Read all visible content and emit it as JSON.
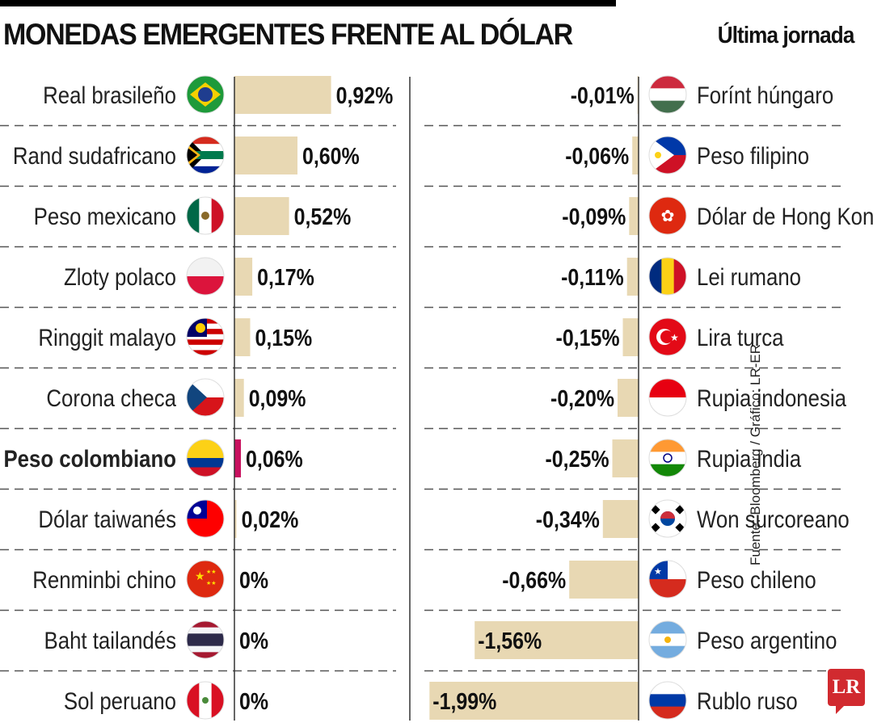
{
  "title": "MONEDAS EMERGENTES FRENTE AL DÓLAR",
  "subtitle": "Última jornada",
  "source": "Fuente: Bloomberg / Gráfico: LR-ER",
  "logo": "LR",
  "colors": {
    "bar": "#e8d8b3",
    "highlight": "#c8105e",
    "axis": "#333333",
    "divider": "#555555"
  },
  "chart_data": {
    "type": "bar",
    "title": "MONEDAS EMERGENTES FRENTE AL DÓLAR",
    "subtitle": "Última jornada",
    "unit": "%",
    "left": [
      {
        "name": "Real brasileño",
        "value": 0.92,
        "label": "0,92%",
        "flag": "br"
      },
      {
        "name": "Rand sudafricano",
        "value": 0.6,
        "label": "0,60%",
        "flag": "za"
      },
      {
        "name": "Peso mexicano",
        "value": 0.52,
        "label": "0,52%",
        "flag": "mx"
      },
      {
        "name": "Zloty polaco",
        "value": 0.17,
        "label": "0,17%",
        "flag": "pl"
      },
      {
        "name": "Ringgit malayo",
        "value": 0.15,
        "label": "0,15%",
        "flag": "my"
      },
      {
        "name": "Corona checa",
        "value": 0.09,
        "label": "0,09%",
        "flag": "cz"
      },
      {
        "name": "Peso colombiano",
        "value": 0.06,
        "label": "0,06%",
        "flag": "co",
        "highlight": true
      },
      {
        "name": "Dólar taiwanés",
        "value": 0.02,
        "label": "0,02%",
        "flag": "tw"
      },
      {
        "name": "Renminbi chino",
        "value": 0,
        "label": "0%",
        "flag": "cn"
      },
      {
        "name": "Baht tailandés",
        "value": 0,
        "label": "0%",
        "flag": "th"
      },
      {
        "name": "Sol peruano",
        "value": 0,
        "label": "0%",
        "flag": "pe"
      }
    ],
    "right": [
      {
        "name": "Forínt húngaro",
        "value": -0.01,
        "label": "-0,01%",
        "flag": "hu"
      },
      {
        "name": "Peso filipino",
        "value": -0.06,
        "label": "-0,06%",
        "flag": "ph"
      },
      {
        "name": "Dólar de Hong Kong",
        "value": -0.09,
        "label": "-0,09%",
        "flag": "hk"
      },
      {
        "name": "Lei rumano",
        "value": -0.11,
        "label": "-0,11%",
        "flag": "ro"
      },
      {
        "name": "Lira turca",
        "value": -0.15,
        "label": "-0,15%",
        "flag": "tr"
      },
      {
        "name": "Rupia indonesia",
        "value": -0.2,
        "label": "-0,20%",
        "flag": "id"
      },
      {
        "name": "Rupia india",
        "value": -0.25,
        "label": "-0,25%",
        "flag": "in"
      },
      {
        "name": "Won surcoreano",
        "value": -0.34,
        "label": "-0,34%",
        "flag": "kr"
      },
      {
        "name": "Peso chileno",
        "value": -0.66,
        "label": "-0,66%",
        "flag": "cl"
      },
      {
        "name": "Peso argentino",
        "value": -1.56,
        "label": "-1,56%",
        "flag": "ar"
      },
      {
        "name": "Rublo ruso",
        "value": -1.99,
        "label": "-1,99%",
        "flag": "ru"
      }
    ]
  }
}
